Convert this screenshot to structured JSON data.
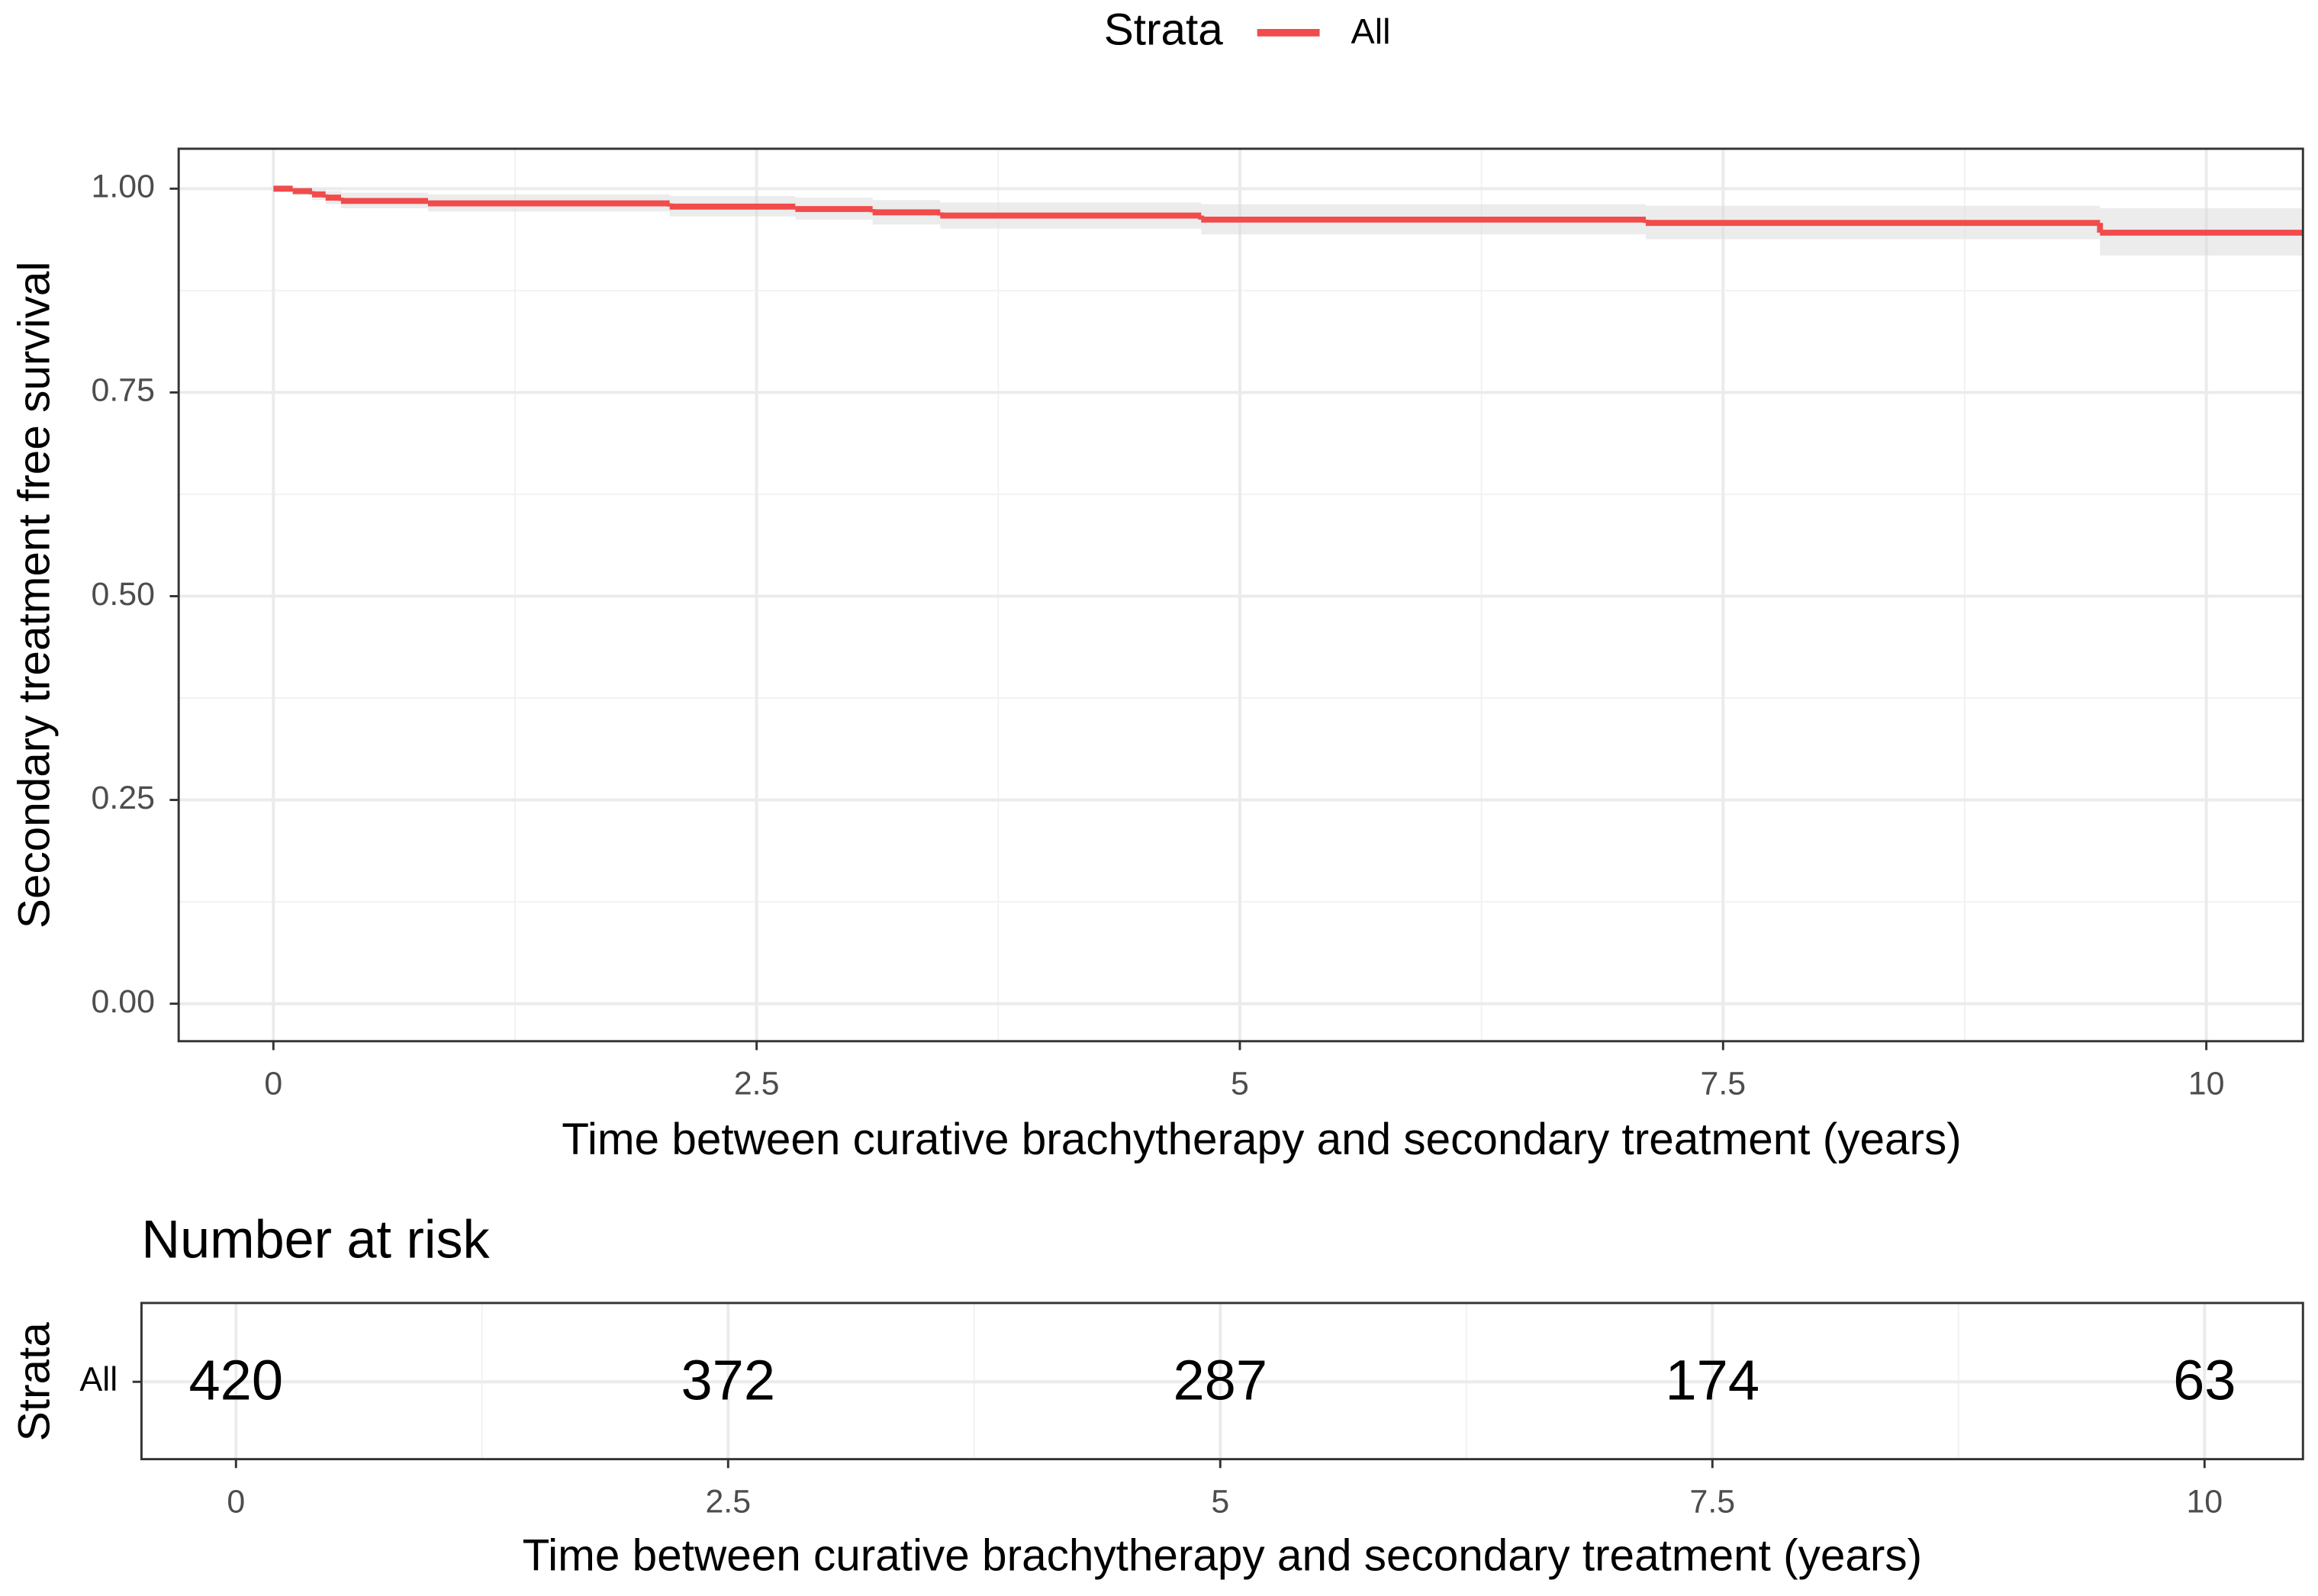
{
  "chart_data": [
    {
      "type": "step",
      "legend_title": "Strata",
      "xlabel": "Time between curative brachytherapy and secondary treatment (years)",
      "ylabel": "Secondary treatment free survival",
      "x": [
        0,
        0.1,
        0.2,
        0.27,
        0.35,
        0.8,
        2.05,
        2.7,
        3.1,
        3.45,
        4.8,
        7.1,
        9.45
      ],
      "series": [
        {
          "name": "All",
          "color": "#f24b4b",
          "values": [
            1.0,
            0.997,
            0.993,
            0.989,
            0.985,
            0.982,
            0.978,
            0.975,
            0.971,
            0.967,
            0.962,
            0.958,
            0.946
          ]
        }
      ],
      "ci_lower": [
        1.0,
        0.992,
        0.986,
        0.981,
        0.976,
        0.972,
        0.966,
        0.962,
        0.956,
        0.951,
        0.944,
        0.938,
        0.918
      ],
      "ci_upper": [
        1.0,
        1.0,
        0.999,
        0.997,
        0.995,
        0.993,
        0.991,
        0.989,
        0.986,
        0.983,
        0.981,
        0.979,
        0.976
      ],
      "xlim": [
        -0.49,
        10.5
      ],
      "ylim": [
        -0.046,
        1.049
      ],
      "xticks": [
        0,
        2.5,
        5,
        7.5,
        10
      ],
      "yticks": [
        {
          "value": 0,
          "label": "0.00"
        },
        {
          "value": 0.25,
          "label": "0.25"
        },
        {
          "value": 0.5,
          "label": "0.50"
        },
        {
          "value": 0.75,
          "label": "0.75"
        },
        {
          "value": 1,
          "label": "1.00"
        }
      ],
      "grid": true,
      "legend_position": "top"
    },
    {
      "type": "risk_table",
      "title": "Number at risk",
      "ylabel": "Strata",
      "row_label": "All",
      "row_color": "#e8262a",
      "x": [
        0,
        2.5,
        5,
        7.5,
        10
      ],
      "values": [
        420,
        372,
        287,
        174,
        63
      ],
      "xlim": [
        -0.48,
        10.5
      ],
      "xticks": [
        0,
        2.5,
        5,
        7.5,
        10
      ],
      "xlabel": "Time between curative brachytherapy and secondary treatment (years)",
      "grid": true
    }
  ]
}
